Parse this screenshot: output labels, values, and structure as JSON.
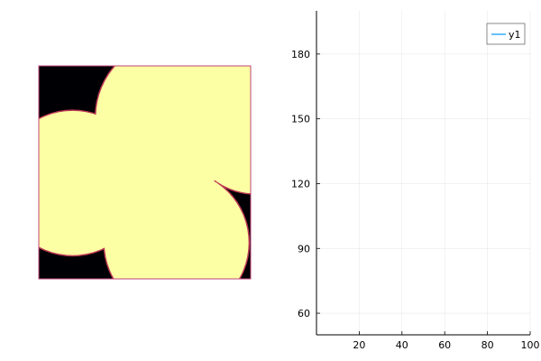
{
  "chart_data": [
    {
      "type": "heatmap",
      "colormap": "inferno",
      "colors": {
        "background": "#000004",
        "foreground": "#fcffa4",
        "edge": "#bc3754",
        "frame": "#c1467a"
      },
      "blobs": [
        {
          "label": "top-right",
          "cx": 0.63,
          "cy": 0.24,
          "r": 0.36
        },
        {
          "label": "left",
          "cx": 0.16,
          "cy": 0.55,
          "r": 0.34
        },
        {
          "label": "bottom-middle",
          "cx": 0.65,
          "cy": 0.83,
          "r": 0.34
        },
        {
          "label": "right",
          "cx": 1.02,
          "cy": 0.28,
          "r": 0.32
        }
      ]
    },
    {
      "type": "line",
      "series": [
        {
          "name": "y1",
          "color": "#009af9",
          "x": [],
          "y": []
        }
      ],
      "xlim": [
        0,
        100
      ],
      "ylim": [
        50,
        200
      ],
      "xticks": [
        20,
        40,
        60,
        80,
        100
      ],
      "yticks": [
        60,
        90,
        120,
        150,
        180
      ],
      "grid": true,
      "legend": "top-right"
    }
  ]
}
